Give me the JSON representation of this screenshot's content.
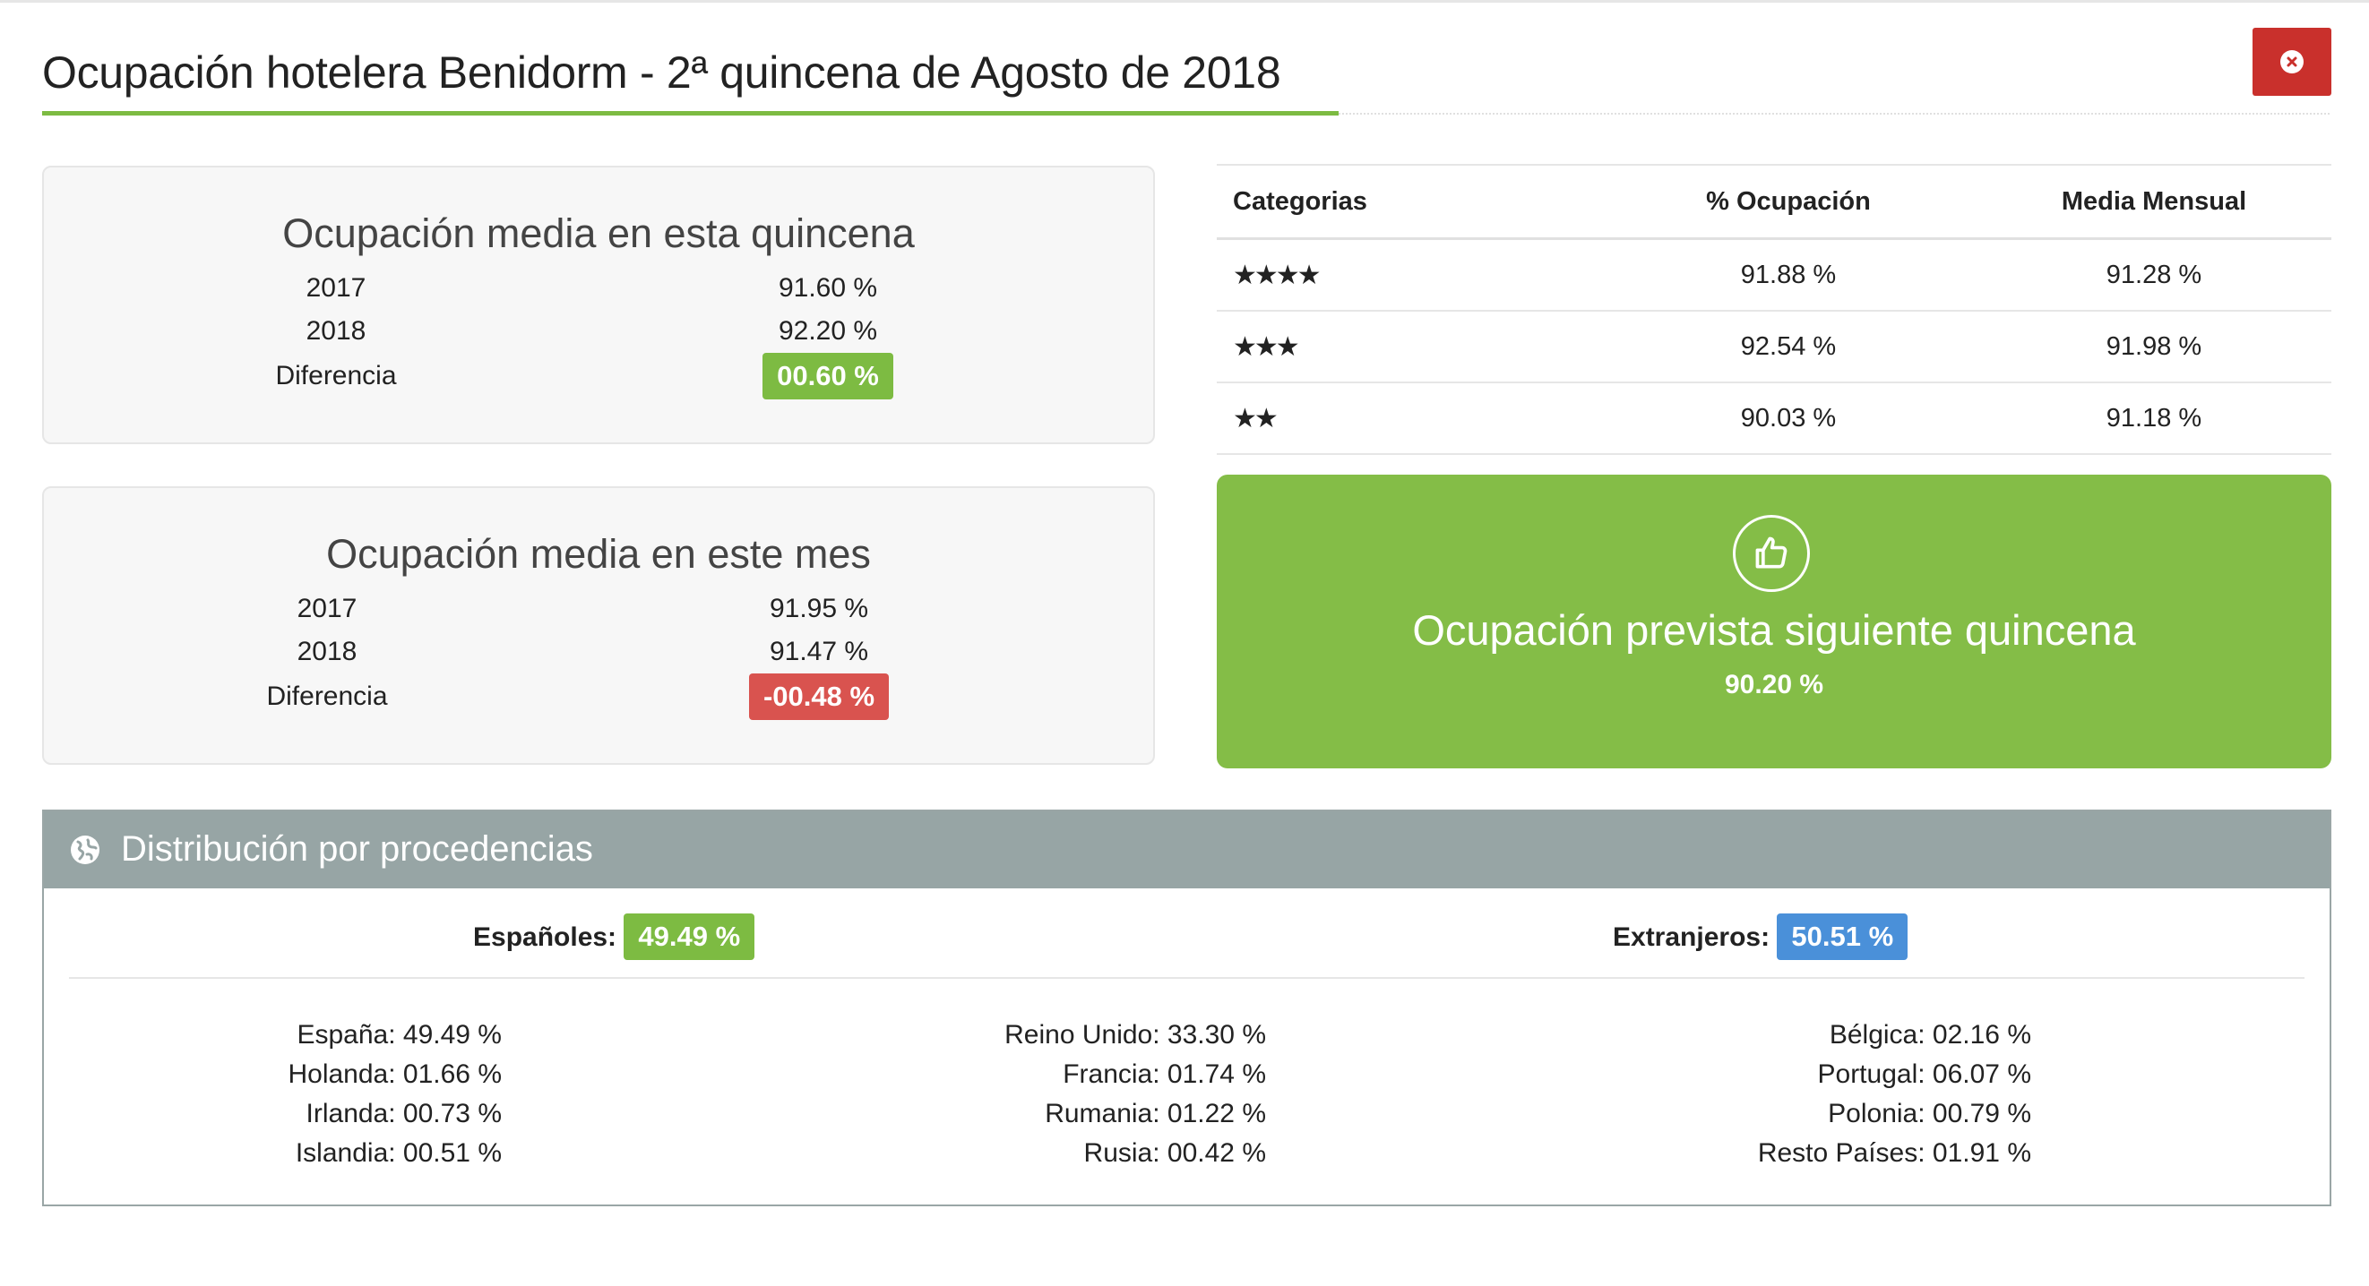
{
  "title": "Ocupación hotelera Benidorm - 2ª quincena de Agosto de 2018",
  "fortnight": {
    "heading": "Ocupación media en esta quincena",
    "rows": [
      {
        "label": "2017",
        "value": "91.60 %"
      },
      {
        "label": "2018",
        "value": "92.20 %"
      }
    ],
    "diff_label": "Diferencia",
    "diff_value": "00.60 %"
  },
  "month": {
    "heading": "Ocupación media en este mes",
    "rows": [
      {
        "label": "2017",
        "value": "91.95 %"
      },
      {
        "label": "2018",
        "value": "91.47 %"
      }
    ],
    "diff_label": "Diferencia",
    "diff_value": "-00.48 %"
  },
  "categories": {
    "headers": [
      "Categorias",
      "% Ocupación",
      "Media Mensual"
    ],
    "rows": [
      {
        "stars": "★★★★",
        "occupancy": "91.88 %",
        "monthly": "91.28 %"
      },
      {
        "stars": "★★★",
        "occupancy": "92.54 %",
        "monthly": "91.98 %"
      },
      {
        "stars": "★★",
        "occupancy": "90.03 %",
        "monthly": "91.18 %"
      }
    ]
  },
  "forecast": {
    "title": "Ocupación prevista siguiente quincena",
    "value": "90.20 %"
  },
  "distribution": {
    "title": "Distribución por procedencias",
    "spanish_label": "Españoles:",
    "spanish_value": "49.49 %",
    "foreign_label": "Extranjeros:",
    "foreign_value": "50.51 %",
    "columns": [
      [
        "España: 49.49 %",
        "Holanda: 01.66 %",
        "Irlanda: 00.73 %",
        "Islandia: 00.51 %"
      ],
      [
        "Reino Unido: 33.30 %",
        "Francia: 01.74 %",
        "Rumania: 01.22 %",
        "Rusia: 00.42 %"
      ],
      [
        "Bélgica: 02.16 %",
        "Portugal: 06.07 %",
        "Polonia: 00.79 %",
        "Resto Países: 01.91 %"
      ]
    ]
  },
  "colors": {
    "accent_green": "#7dbb42",
    "forecast_green": "#84bd47",
    "negative_red": "#d9534f",
    "close_red": "#c9302c",
    "foreign_blue": "#4a90d9",
    "header_gray": "#97a5a5"
  },
  "icons": {
    "close": "close-icon",
    "thumbs_up": "thumbs-up-icon",
    "globe": "globe-icon"
  }
}
